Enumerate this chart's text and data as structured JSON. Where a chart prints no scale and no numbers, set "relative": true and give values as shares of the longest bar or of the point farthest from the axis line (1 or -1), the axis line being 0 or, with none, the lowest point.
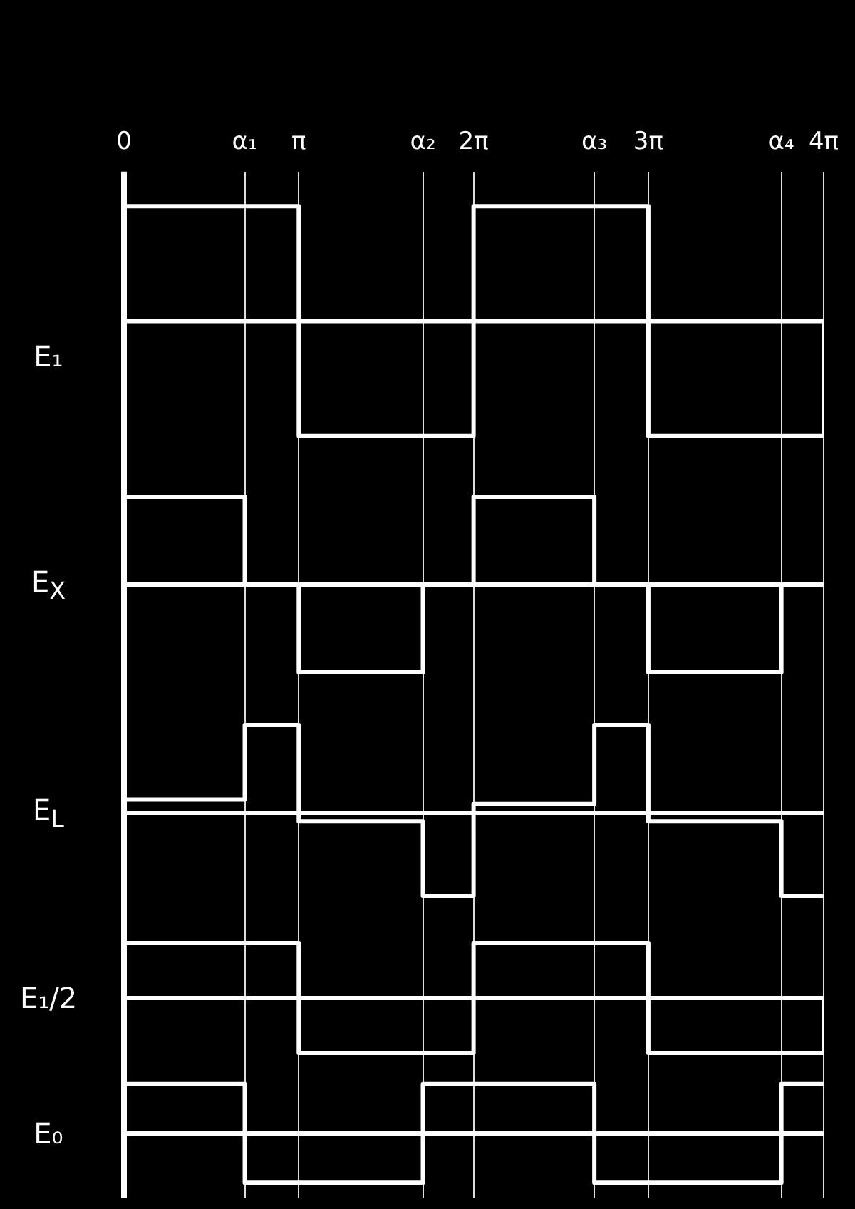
{
  "chart_data": [
    {
      "type": "step",
      "ylabel": "E₁",
      "relative": true,
      "grid": "x",
      "tick_labels": "x",
      "xlim": [
        0,
        12.57
      ],
      "xticks": [
        {
          "value": 0,
          "label": "0"
        },
        {
          "value": 2.17,
          "label": "α₁"
        },
        {
          "value": 3.14,
          "label": "π"
        },
        {
          "value": 5.37,
          "label": "α₂"
        },
        {
          "value": 6.28,
          "label": "2π"
        },
        {
          "value": 8.45,
          "label": "α₃"
        },
        {
          "value": 9.42,
          "label": "3π"
        },
        {
          "value": 11.81,
          "label": "α₄"
        },
        {
          "value": 12.57,
          "label": "4π"
        }
      ],
      "series": [
        {
          "color": "#ffffff",
          "x": [
            0,
            3.14,
            6.28,
            9.42,
            12.57
          ],
          "values": [
            1,
            -1,
            1,
            -1,
            0
          ]
        }
      ]
    },
    {
      "type": "step",
      "ylabel": "E$_{X}$",
      "relative": true,
      "grid": "x",
      "tick_labels": false,
      "xlim": [
        0,
        12.57
      ],
      "xticks": [
        {
          "value": 0,
          "label": null
        },
        {
          "value": 2.17,
          "label": null
        },
        {
          "value": 3.14,
          "label": null
        },
        {
          "value": 5.37,
          "label": null
        },
        {
          "value": 6.28,
          "label": null
        },
        {
          "value": 8.45,
          "label": null
        },
        {
          "value": 9.42,
          "label": null
        },
        {
          "value": 11.81,
          "label": null
        },
        {
          "value": 12.57,
          "label": null
        }
      ],
      "series": [
        {
          "color": "#ffffff",
          "x": [
            0,
            2.17,
            3.14,
            5.37,
            6.28,
            8.45,
            9.42,
            11.81,
            12.57
          ],
          "values": [
            1,
            0,
            -1,
            0,
            1,
            0,
            -1,
            0,
            0
          ]
        }
      ]
    },
    {
      "type": "step",
      "ylabel": "E$_{L}$",
      "relative": true,
      "grid": "x",
      "tick_labels": false,
      "xlim": [
        0,
        12.57
      ],
      "xticks": [
        {
          "value": 0,
          "label": null
        },
        {
          "value": 2.17,
          "label": null
        },
        {
          "value": 3.14,
          "label": null
        },
        {
          "value": 5.37,
          "label": null
        },
        {
          "value": 6.28,
          "label": null
        },
        {
          "value": 8.45,
          "label": null
        },
        {
          "value": 9.42,
          "label": null
        },
        {
          "value": 11.81,
          "label": null
        },
        {
          "value": 12.57,
          "label": null
        }
      ],
      "series": [
        {
          "color": "#ffffff",
          "x": [
            0,
            2.17,
            3.14,
            5.37,
            6.28,
            8.45,
            9.42,
            11.81,
            12.57
          ],
          "values": [
            0.15,
            1,
            -0.1,
            -0.95,
            0.1,
            1,
            -0.1,
            -0.95,
            -0.95
          ]
        }
      ]
    },
    {
      "type": "step",
      "ylabel": "E₁/2",
      "relative": true,
      "grid": "x",
      "tick_labels": false,
      "xlim": [
        0,
        12.57
      ],
      "xticks": [
        {
          "value": 0,
          "label": null
        },
        {
          "value": 2.17,
          "label": null
        },
        {
          "value": 3.14,
          "label": null
        },
        {
          "value": 5.37,
          "label": null
        },
        {
          "value": 6.28,
          "label": null
        },
        {
          "value": 8.45,
          "label": null
        },
        {
          "value": 9.42,
          "label": null
        },
        {
          "value": 11.81,
          "label": null
        },
        {
          "value": 12.57,
          "label": null
        }
      ],
      "series": [
        {
          "color": "#ffffff",
          "x": [
            0,
            3.14,
            6.28,
            9.42,
            12.57
          ],
          "values": [
            1,
            -1,
            1,
            -1,
            0
          ]
        }
      ]
    },
    {
      "type": "step",
      "ylabel": "E₀",
      "relative": true,
      "grid": "x",
      "tick_labels": false,
      "xlim": [
        0,
        12.57
      ],
      "xticks": [
        {
          "value": 0,
          "label": null
        },
        {
          "value": 2.17,
          "label": null
        },
        {
          "value": 3.14,
          "label": null
        },
        {
          "value": 5.37,
          "label": null
        },
        {
          "value": 6.28,
          "label": null
        },
        {
          "value": 8.45,
          "label": null
        },
        {
          "value": 9.42,
          "label": null
        },
        {
          "value": 11.81,
          "label": null
        },
        {
          "value": 12.57,
          "label": null
        }
      ],
      "series": [
        {
          "color": "#ffffff",
          "x": [
            0,
            2.17,
            5.37,
            8.45,
            11.81,
            12.57
          ],
          "values": [
            1,
            -1,
            1,
            -1,
            1,
            1
          ]
        }
      ]
    }
  ]
}
